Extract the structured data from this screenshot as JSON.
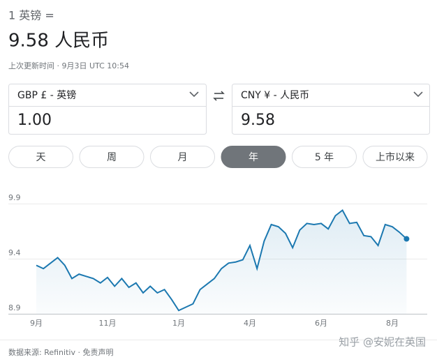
{
  "header": {
    "label": "1 英镑 =",
    "result": "9.58 人民币",
    "updated": "上次更新时间 · 9月3日 UTC 10:54"
  },
  "converter": {
    "from": {
      "currency": "GBP £ - 英镑",
      "amount": "1.00"
    },
    "to": {
      "currency": "CNY ¥ - 人民币",
      "amount": "9.58"
    }
  },
  "tabs": [
    "天",
    "周",
    "月",
    "年",
    "5 年",
    "上市以来"
  ],
  "chart_data": {
    "type": "line",
    "categories": [
      "9月",
      null,
      null,
      null,
      null,
      null,
      null,
      null,
      null,
      null,
      "11月",
      null,
      null,
      null,
      null,
      null,
      null,
      null,
      null,
      null,
      "1月",
      null,
      null,
      null,
      null,
      null,
      null,
      null,
      null,
      null,
      "4月",
      null,
      null,
      null,
      null,
      null,
      null,
      null,
      null,
      null,
      "6月",
      null,
      null,
      null,
      null,
      null,
      null,
      null,
      null,
      null,
      "8月",
      null,
      null
    ],
    "values": [
      9.34,
      9.31,
      9.36,
      9.41,
      9.34,
      9.22,
      9.26,
      9.24,
      9.22,
      9.18,
      9.23,
      9.15,
      9.22,
      9.14,
      9.18,
      9.09,
      9.15,
      9.09,
      9.12,
      9.03,
      8.93,
      8.96,
      8.99,
      9.12,
      9.17,
      9.22,
      9.31,
      9.36,
      9.37,
      9.39,
      9.52,
      9.31,
      9.56,
      9.71,
      9.69,
      9.63,
      9.5,
      9.66,
      9.72,
      9.71,
      9.72,
      9.67,
      9.79,
      9.84,
      9.72,
      9.73,
      9.61,
      9.6,
      9.52,
      9.71,
      9.69,
      9.64,
      9.58
    ],
    "color": "#1b78b0",
    "ylim": [
      8.9,
      9.9
    ],
    "yticks": [
      8.9,
      9.4,
      9.9
    ],
    "grid": true
  },
  "footer": {
    "source": "数据来源: Refinitiv · 免责声明",
    "watermark": "知乎 @安妮在英国"
  }
}
